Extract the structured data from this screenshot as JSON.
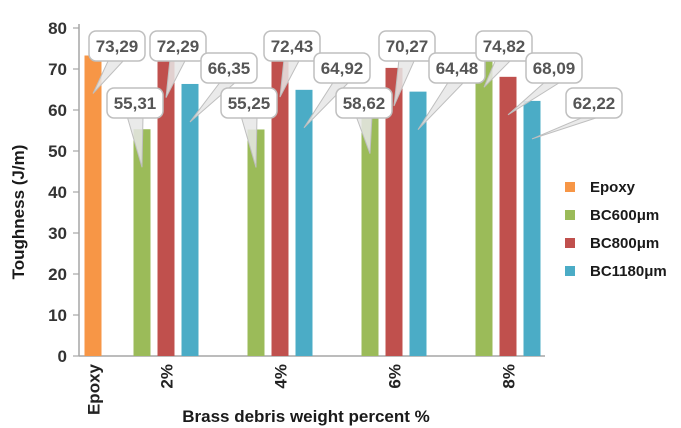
{
  "chart_data": {
    "type": "bar",
    "ylabel": "Toughness (J/m)",
    "xlabel": "Brass debris weight percent %",
    "ylim": [
      0,
      80
    ],
    "yticks": [
      "0",
      "10",
      "20",
      "30",
      "40",
      "50",
      "60",
      "70",
      "80"
    ],
    "categories": [
      "Epoxy",
      "2%",
      "4%",
      "6%",
      "8%"
    ],
    "legend_position": "right",
    "grid": false,
    "series": [
      {
        "name": "Epoxy",
        "color": "#f79646",
        "values": [
          73.29,
          null,
          null,
          null,
          null
        ],
        "labels": [
          "73,29",
          "",
          "",
          "",
          ""
        ]
      },
      {
        "name": "BC600μm",
        "color": "#9bbb59",
        "values": [
          null,
          55.31,
          55.25,
          58.62,
          74.82
        ],
        "labels": [
          "",
          "55,31",
          "55,25",
          "58,62",
          "74,82"
        ]
      },
      {
        "name": "BC800μm",
        "color": "#c0504d",
        "values": [
          null,
          72.29,
          72.43,
          70.27,
          68.09
        ],
        "labels": [
          "",
          "72,29",
          "72,43",
          "70,27",
          "68,09"
        ]
      },
      {
        "name": "BC1180μm",
        "color": "#4bacc6",
        "values": [
          null,
          66.35,
          64.92,
          64.48,
          62.22
        ],
        "labels": [
          "",
          "66,35",
          "64,92",
          "64,48",
          "62,22"
        ]
      }
    ]
  }
}
